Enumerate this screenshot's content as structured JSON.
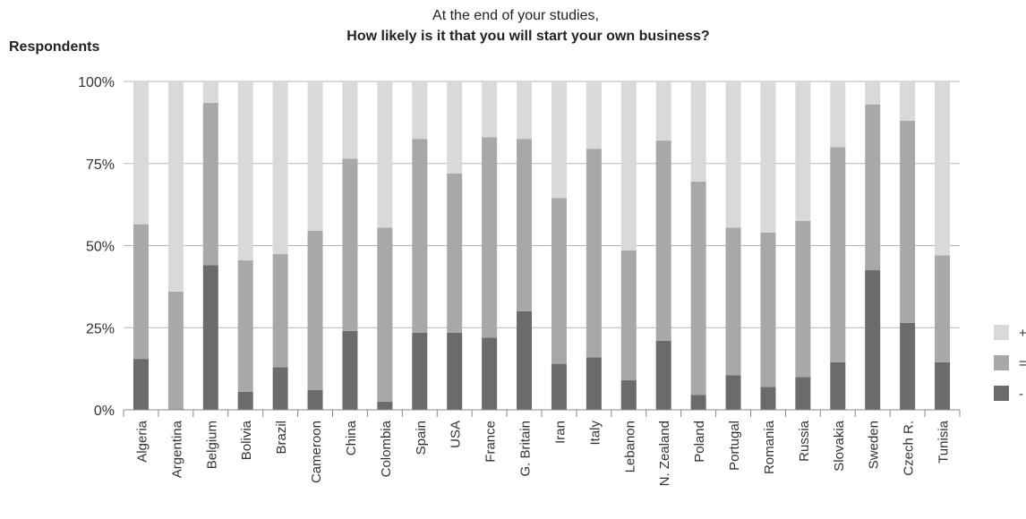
{
  "chart_data": {
    "type": "bar",
    "stacked": true,
    "title": "At the end of your studies,",
    "subtitle": "How likely is it that you will start your own business?",
    "ylabel": "Respondents",
    "xlabel": "",
    "ylim": [
      0,
      100
    ],
    "yticks": [
      "0%",
      "25%",
      "50%",
      "75%",
      "100%"
    ],
    "grid": true,
    "legend_position": "right",
    "categories": [
      "Algeria",
      "Argentina",
      "Belgium",
      "Bolivia",
      "Brazil",
      "Cameroon",
      "China",
      "Colombia",
      "Spain",
      "USA",
      "France",
      "G. Britain",
      "Iran",
      "Italy",
      "Lebanon",
      "N. Zealand",
      "Poland",
      "Portugal",
      "Romania",
      "Russia",
      "Slovakia",
      "Sweden",
      "Czech R.",
      "Tunisia"
    ],
    "series": [
      {
        "name": "-",
        "color": "#6b6b6b",
        "values": [
          15.5,
          0,
          44,
          5.5,
          13,
          6,
          24,
          2.5,
          23.5,
          23.5,
          22,
          30,
          14,
          16,
          9,
          21,
          4.5,
          10.5,
          7,
          10,
          14.5,
          42.5,
          26.5,
          14.5
        ]
      },
      {
        "name": "=",
        "color": "#a8a8a8",
        "values": [
          41,
          36,
          49.5,
          40,
          34.5,
          48.5,
          52.5,
          53,
          59,
          48.5,
          61,
          52.5,
          50.5,
          63.5,
          39.5,
          61,
          65,
          45,
          47,
          47.5,
          65.5,
          50.5,
          61.5,
          32.5
        ]
      },
      {
        "name": "+",
        "color": "#d9d9d9",
        "values": [
          43.5,
          64,
          6.5,
          54.5,
          52.5,
          45.5,
          23.5,
          44.5,
          17.5,
          28,
          17,
          17.5,
          35.5,
          20.5,
          51.5,
          18,
          30.5,
          44.5,
          46,
          42.5,
          20,
          7,
          12,
          53
        ]
      }
    ]
  }
}
